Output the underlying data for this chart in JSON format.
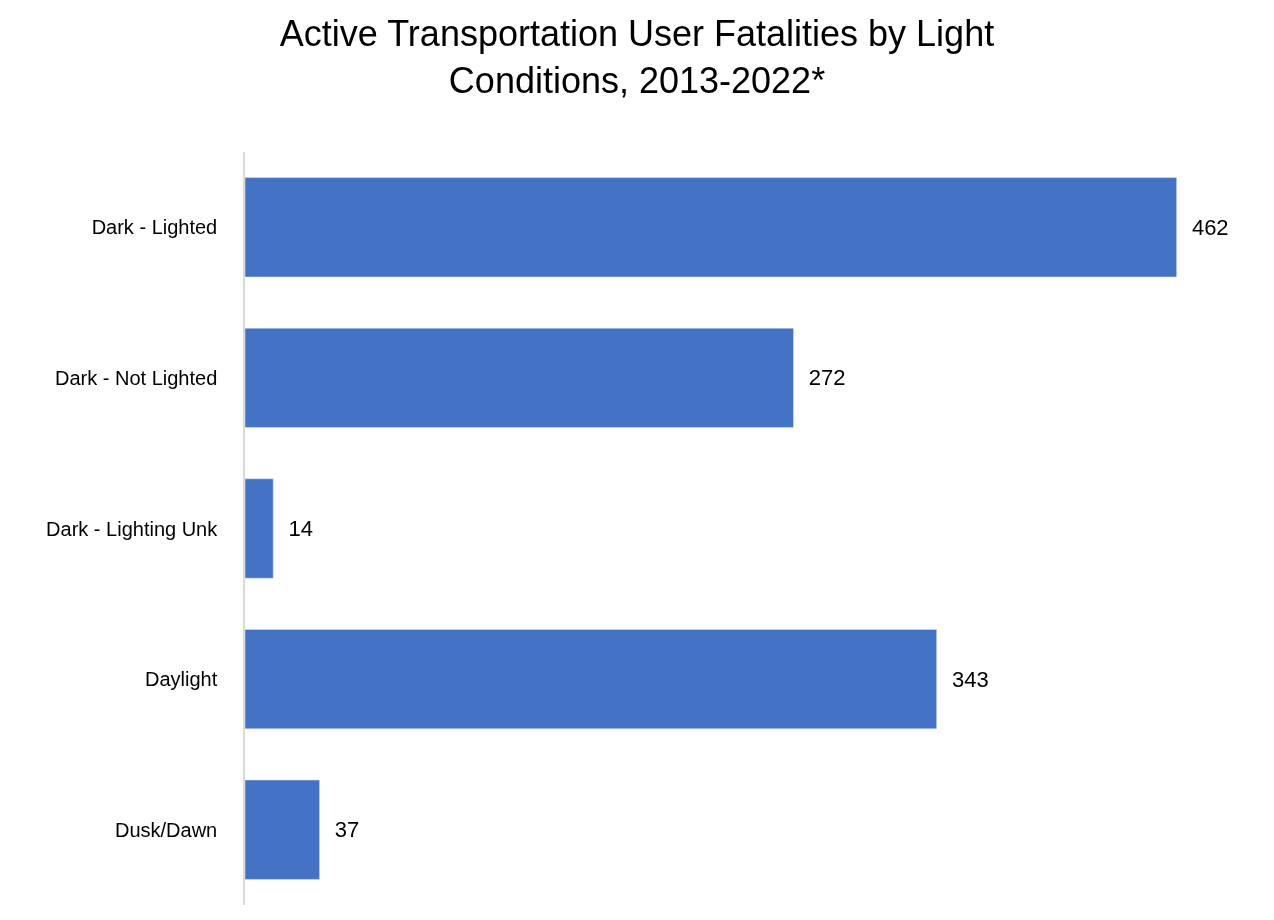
{
  "chart_data": {
    "type": "bar",
    "orientation": "horizontal",
    "title": "Active Transportation User Fatalities by Light\nConditions, 2013-2022*",
    "categories": [
      "Dark - Lighted",
      "Dark - Not Lighted",
      "Dark - Lighting Unk",
      "Daylight",
      "Dusk/Dawn"
    ],
    "values": [
      462,
      272,
      14,
      343,
      37
    ],
    "color": "#4472c4",
    "data_labels": true,
    "tick_labels": "y"
  }
}
